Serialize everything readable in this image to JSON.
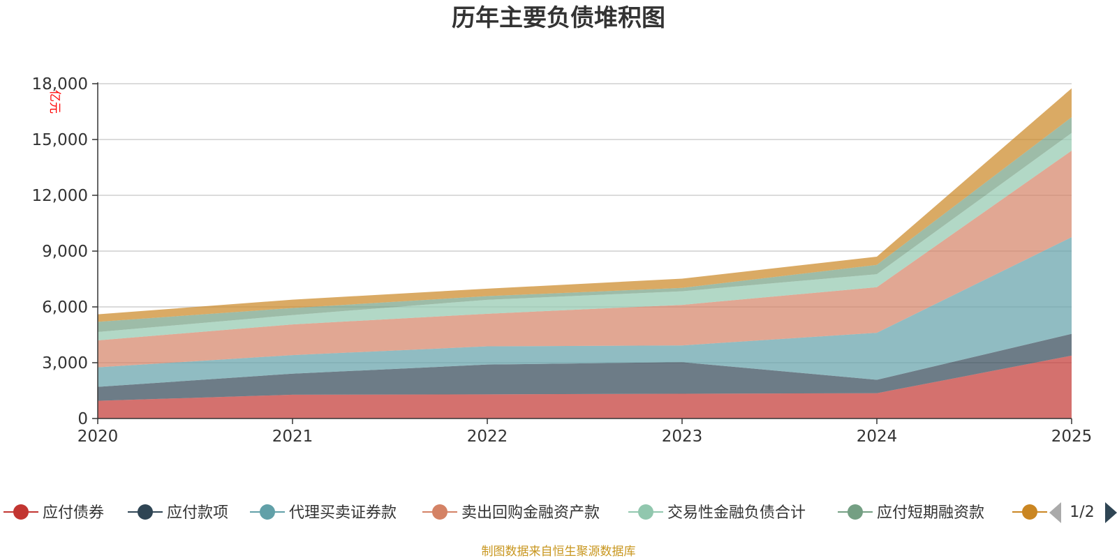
{
  "chart_data": {
    "type": "area",
    "stacked": true,
    "title": "历年主要负债堆积图",
    "ylabel": "亿元",
    "xlabel": "",
    "categories": [
      "2020",
      "2021",
      "2022",
      "2023",
      "2024",
      "2025"
    ],
    "ylim": [
      0,
      18000
    ],
    "yticks": [
      0,
      3000,
      6000,
      9000,
      12000,
      15000,
      18000
    ],
    "ytick_labels": [
      "0",
      "3,000",
      "6,000",
      "9,000",
      "12,000",
      "15,000",
      "18,000"
    ],
    "grid": true,
    "legend_position": "bottom",
    "series": [
      {
        "name": "应付债券",
        "color": "#c23531",
        "values": [
          950,
          1280,
          1300,
          1330,
          1360,
          3380
        ]
      },
      {
        "name": "应付款项",
        "color": "#2f4554",
        "values": [
          750,
          1130,
          1600,
          1700,
          720,
          1170
        ]
      },
      {
        "name": "代理买卖证券款",
        "color": "#61a0a8",
        "values": [
          1050,
          1000,
          980,
          900,
          2530,
          5200
        ]
      },
      {
        "name": "卖出回购金融资产款",
        "color": "#d48265",
        "values": [
          1450,
          1650,
          1750,
          2180,
          2450,
          4650
        ]
      },
      {
        "name": "交易性金融负债合计",
        "color": "#91c7ae",
        "values": [
          450,
          500,
          750,
          730,
          700,
          950
        ]
      },
      {
        "name": "应付短期融资款",
        "color": "#749f83",
        "values": [
          550,
          380,
          200,
          180,
          500,
          850
        ]
      },
      {
        "name": "",
        "color": "#ca8622",
        "values": [
          400,
          450,
          400,
          500,
          440,
          1550
        ]
      }
    ]
  },
  "legend": {
    "pager": "1/2"
  },
  "footer": {
    "source": "制图数据来自恒生聚源数据库"
  }
}
